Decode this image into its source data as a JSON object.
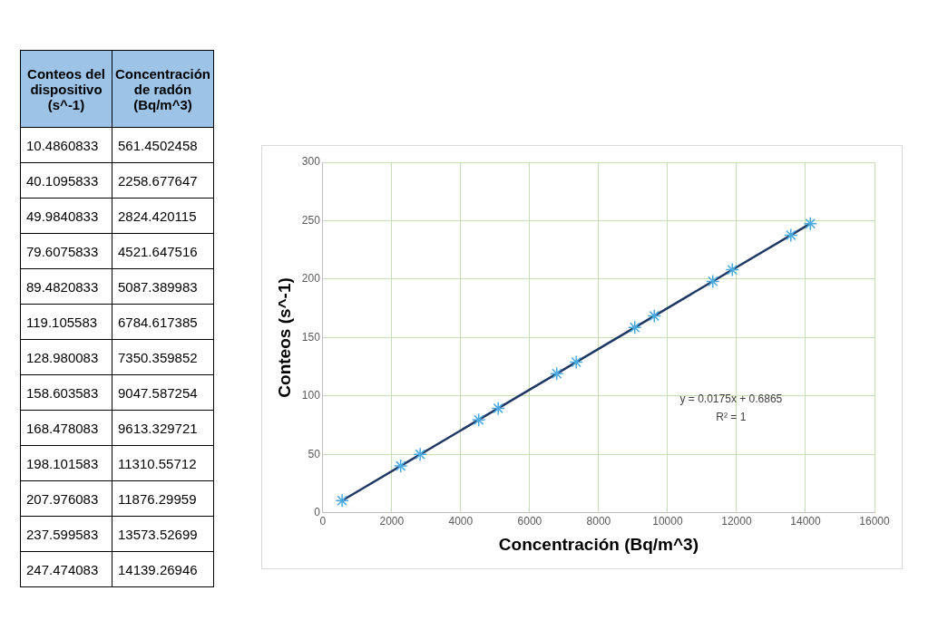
{
  "chart_data": [
    {
      "type": "other",
      "annotations": [
        "Conteos del dispositivo (s^-1)",
        "Concentración de radón (Bq/m^3)",
        "10.4860833",
        "561.4502458",
        "40.1095833",
        "2258.677647",
        "49.9840833",
        "2824.420115",
        "79.6075833",
        "4521.647516",
        "89.4820833",
        "5087.389983",
        "119.105583",
        "6784.617385",
        "128.980083",
        "7350.359852",
        "158.603583",
        "9047.587254",
        "168.478083",
        "9613.329721",
        "198.101583",
        "11310.55712",
        "207.976083",
        "11876.29959",
        "237.599583",
        "13573.52699",
        "247.474083",
        "14139.26946"
      ]
    },
    {
      "type": "scatter",
      "xlabel": "Concentración (Bq/m^3)",
      "ylabel": "Conteos (s^-1)",
      "xlim": [
        0,
        16000
      ],
      "xticks": [
        0,
        2000,
        4000,
        6000,
        8000,
        10000,
        12000,
        14000,
        16000
      ],
      "ylim": [
        0,
        300
      ],
      "yticks": [
        0,
        50,
        100,
        150,
        200,
        250,
        300
      ],
      "grid": true,
      "marker": "cross",
      "series": [
        {
          "type": "scatter",
          "color": "#4aa8e0",
          "x": [
            561,
            2259,
            2824,
            4522,
            5087,
            6785,
            7350,
            9048,
            9613,
            11311,
            11876,
            13574,
            14139
          ],
          "values": [
            10.5,
            40.1,
            50.0,
            79.6,
            89.5,
            119.1,
            129.0,
            158.6,
            168.5,
            198.1,
            208.0,
            237.6,
            247.5
          ]
        },
        {
          "type": "line",
          "color": "#1f3864",
          "marker": "none",
          "x": [
            561,
            14139
          ],
          "values": [
            10.5,
            247.5
          ]
        }
      ],
      "annotations": [
        "y = 0.0175x + 0.6865",
        "R² = 1"
      ]
    }
  ]
}
